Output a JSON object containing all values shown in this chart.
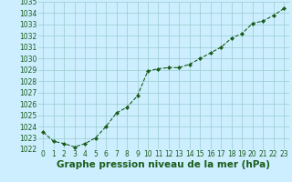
{
  "x": [
    0,
    1,
    2,
    3,
    4,
    5,
    6,
    7,
    8,
    9,
    10,
    11,
    12,
    13,
    14,
    15,
    16,
    17,
    18,
    19,
    20,
    21,
    22,
    23
  ],
  "y": [
    1023.5,
    1022.7,
    1022.5,
    1022.2,
    1022.5,
    1023.0,
    1024.0,
    1025.2,
    1025.7,
    1026.7,
    1028.9,
    1029.1,
    1029.2,
    1029.2,
    1029.5,
    1030.0,
    1030.5,
    1031.0,
    1031.8,
    1032.2,
    1033.1,
    1033.3,
    1033.8,
    1034.4
  ],
  "ylim": [
    1022,
    1035
  ],
  "xlim": [
    -0.5,
    23.5
  ],
  "yticks": [
    1022,
    1023,
    1024,
    1025,
    1026,
    1027,
    1028,
    1029,
    1030,
    1031,
    1032,
    1033,
    1034,
    1035
  ],
  "xticks": [
    0,
    1,
    2,
    3,
    4,
    5,
    6,
    7,
    8,
    9,
    10,
    11,
    12,
    13,
    14,
    15,
    16,
    17,
    18,
    19,
    20,
    21,
    22,
    23
  ],
  "line_color": "#1a5c1a",
  "marker_color": "#1a5c1a",
  "bg_color": "#cceeff",
  "grid_color": "#99cccc",
  "xlabel": "Graphe pression niveau de la mer (hPa)",
  "xlabel_color": "#1a5c1a",
  "tick_color": "#1a5c1a",
  "tick_fontsize": 5.5,
  "xlabel_fontsize": 7.5
}
